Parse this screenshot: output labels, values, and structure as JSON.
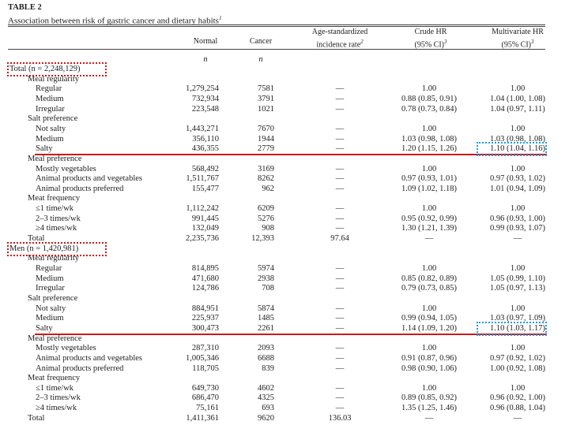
{
  "title": "TABLE 2",
  "subtitle": "Association between risk of gastric cancer and dietary habits",
  "subtitle_sup": "1",
  "headers": {
    "normal": "Normal",
    "cancer": "Cancer",
    "rate_line1": "Age-standardized",
    "rate_line2": "incidence rate",
    "rate_sup": "2",
    "crude_line1": "Crude HR",
    "crude_line2": "(95% CI)",
    "crude_sup": "3",
    "multi_line1": "Multivariate HR",
    "multi_line2": "(95% CI)",
    "multi_sup": "3",
    "n_normal": "n",
    "n_cancer": "n"
  },
  "colors": {
    "highlight_red": "#d01818",
    "highlight_blue": "#1e9fe0"
  },
  "rows": [
    {
      "type": "section",
      "label": "Total (n = 2,248,129)",
      "boxed": true
    },
    {
      "type": "group",
      "label": "Meal regularity"
    },
    {
      "type": "item",
      "label": "Regular",
      "normal": "1,279,254",
      "cancer": "7581",
      "rate": "—",
      "crude": "1.00",
      "multi": "1.00"
    },
    {
      "type": "item",
      "label": "Medium",
      "normal": "732,934",
      "cancer": "3791",
      "rate": "—",
      "crude": "0.88 (0.85, 0.91)",
      "multi": "1.04 (1.00, 1.08)"
    },
    {
      "type": "item",
      "label": "Irregular",
      "normal": "223,548",
      "cancer": "1021",
      "rate": "—",
      "crude": "0.78 (0.73, 0.84)",
      "multi": "1.04 (0.97, 1.11)"
    },
    {
      "type": "group",
      "label": "Salt preference"
    },
    {
      "type": "item",
      "label": "Not salty",
      "normal": "1,443,271",
      "cancer": "7670",
      "rate": "—",
      "crude": "1.00",
      "multi": "1.00"
    },
    {
      "type": "item",
      "label": "Medium",
      "normal": "356,110",
      "cancer": "1944",
      "rate": "—",
      "crude": "1.03 (0.98, 1.08)",
      "multi": "1.03 (0.98, 1.08)"
    },
    {
      "type": "item",
      "label": "Salty",
      "normal": "436,355",
      "cancer": "2779",
      "rate": "—",
      "crude": "1.20 (1.15, 1.26)",
      "multi": "1.10 (1.04, 1.16)",
      "highlight": true
    },
    {
      "type": "group",
      "label": "Meal preference"
    },
    {
      "type": "item",
      "label": "Mostly vegetables",
      "normal": "568,492",
      "cancer": "3169",
      "rate": "—",
      "crude": "1.00",
      "multi": "1.00"
    },
    {
      "type": "item",
      "label": "Animal products and vegetables",
      "normal": "1,511,767",
      "cancer": "8262",
      "rate": "—",
      "crude": "0.97 (0.93, 1.01)",
      "multi": "0.97 (0.93, 1.02)"
    },
    {
      "type": "item",
      "label": "Animal products preferred",
      "normal": "155,477",
      "cancer": "962",
      "rate": "—",
      "crude": "1.09 (1.02, 1.18)",
      "multi": "1.01 (0.94, 1.09)"
    },
    {
      "type": "group",
      "label": "Meat frequency"
    },
    {
      "type": "item",
      "label": "≤1 time/wk",
      "normal": "1,112,242",
      "cancer": "6209",
      "rate": "—",
      "crude": "1.00",
      "multi": "1.00"
    },
    {
      "type": "item",
      "label": "2–3 times/wk",
      "normal": "991,445",
      "cancer": "5276",
      "rate": "—",
      "crude": "0.95 (0.92, 0.99)",
      "multi": "0.96 (0.93, 1.00)"
    },
    {
      "type": "item",
      "label": "≥4 times/wk",
      "normal": "132,049",
      "cancer": "908",
      "rate": "—",
      "crude": "1.30 (1.21, 1.39)",
      "multi": "0.99 (0.93, 1.07)"
    },
    {
      "type": "total",
      "label": "Total",
      "normal": "2,235,736",
      "cancer": "12,393",
      "rate": "97.64",
      "crude": "—",
      "multi": "—"
    },
    {
      "type": "section",
      "label": "Men (n = 1,420,981)",
      "boxed": true
    },
    {
      "type": "group",
      "label": "Meal regularity"
    },
    {
      "type": "item",
      "label": "Regular",
      "normal": "814,895",
      "cancer": "5974",
      "rate": "—",
      "crude": "1.00",
      "multi": "1.00"
    },
    {
      "type": "item",
      "label": "Medium",
      "normal": "471,680",
      "cancer": "2938",
      "rate": "—",
      "crude": "0.85 (0.82, 0.89)",
      "multi": "1.05 (0.99, 1.10)"
    },
    {
      "type": "item",
      "label": "Irregular",
      "normal": "124,786",
      "cancer": "708",
      "rate": "—",
      "crude": "0.79 (0.73, 0.85)",
      "multi": "1.05 (0.97, 1.13)"
    },
    {
      "type": "group",
      "label": "Salt preference"
    },
    {
      "type": "item",
      "label": "Not salty",
      "normal": "884,951",
      "cancer": "5874",
      "rate": "—",
      "crude": "1.00",
      "multi": "1.00"
    },
    {
      "type": "item",
      "label": "Medium",
      "normal": "225,937",
      "cancer": "1485",
      "rate": "—",
      "crude": "0.99 (0.94, 1.05)",
      "multi": "1.03 (0.97, 1.09)"
    },
    {
      "type": "item",
      "label": "Salty",
      "normal": "300,473",
      "cancer": "2261",
      "rate": "—",
      "crude": "1.14 (1.09, 1.20)",
      "multi": "1.10 (1.03, 1.17)",
      "highlight": true
    },
    {
      "type": "group",
      "label": "Meal preference"
    },
    {
      "type": "item",
      "label": "Mostly vegetables",
      "normal": "287,310",
      "cancer": "2093",
      "rate": "—",
      "crude": "1.00",
      "multi": "1.00"
    },
    {
      "type": "item",
      "label": "Animal products and vegetables",
      "normal": "1,005,346",
      "cancer": "6688",
      "rate": "—",
      "crude": "0.91 (0.87, 0.96)",
      "multi": "0.97 (0.92, 1.02)"
    },
    {
      "type": "item",
      "label": "Animal products preferred",
      "normal": "118,705",
      "cancer": "839",
      "rate": "—",
      "crude": "0.98 (0.90, 1.06)",
      "multi": "1.00 (0.92, 1.08)"
    },
    {
      "type": "group",
      "label": "Meat frequency"
    },
    {
      "type": "item",
      "label": "≤1 time/wk",
      "normal": "649,730",
      "cancer": "4602",
      "rate": "—",
      "crude": "1.00",
      "multi": "1.00"
    },
    {
      "type": "item",
      "label": "2–3 times/wk",
      "normal": "686,470",
      "cancer": "4325",
      "rate": "—",
      "crude": "0.89 (0.85, 0.92)",
      "multi": "0.96 (0.92, 1.00)"
    },
    {
      "type": "item",
      "label": "≥4 times/wk",
      "normal": "75,161",
      "cancer": "693",
      "rate": "—",
      "crude": "1.35 (1.25, 1.46)",
      "multi": "0.96 (0.88, 1.04)"
    },
    {
      "type": "total",
      "label": "Total",
      "normal": "1,411,361",
      "cancer": "9620",
      "rate": "136.03",
      "crude": "—",
      "multi": "—"
    }
  ]
}
